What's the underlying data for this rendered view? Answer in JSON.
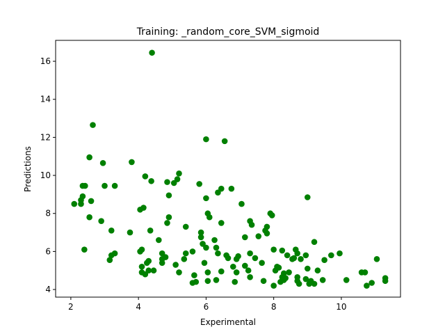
{
  "chart_data": {
    "type": "scatter",
    "title": "Training: _random_core_SVM_sigmoid",
    "xlabel": "Experimental",
    "ylabel": "Predictions",
    "xlim": [
      1.55,
      11.75
    ],
    "ylim": [
      3.6,
      17.1
    ],
    "xticks": [
      2,
      4,
      6,
      8,
      10
    ],
    "yticks": [
      4,
      6,
      8,
      10,
      12,
      14,
      16
    ],
    "grid": false,
    "marker_color": "#008000",
    "series": [
      {
        "points": [
          [
            2.1,
            8.5
          ],
          [
            2.3,
            8.5
          ],
          [
            2.3,
            8.7
          ],
          [
            2.35,
            8.9
          ],
          [
            2.35,
            9.45
          ],
          [
            2.42,
            9.45
          ],
          [
            2.4,
            6.1
          ],
          [
            2.55,
            7.8
          ],
          [
            2.55,
            10.95
          ],
          [
            2.6,
            8.65
          ],
          [
            2.65,
            12.65
          ],
          [
            2.9,
            7.6
          ],
          [
            2.95,
            10.65
          ],
          [
            3.0,
            9.45
          ],
          [
            3.15,
            5.55
          ],
          [
            3.2,
            7.1
          ],
          [
            3.2,
            5.8
          ],
          [
            3.3,
            5.9
          ],
          [
            3.3,
            9.45
          ],
          [
            3.75,
            7.0
          ],
          [
            3.8,
            10.7
          ],
          [
            4.05,
            8.2
          ],
          [
            4.05,
            6.0
          ],
          [
            4.1,
            5.2
          ],
          [
            4.1,
            6.1
          ],
          [
            4.1,
            4.9
          ],
          [
            4.15,
            8.3
          ],
          [
            4.2,
            4.8
          ],
          [
            4.2,
            9.95
          ],
          [
            4.25,
            5.4
          ],
          [
            4.3,
            5.5
          ],
          [
            4.3,
            5.0
          ],
          [
            4.35,
            7.1
          ],
          [
            4.38,
            9.7
          ],
          [
            4.4,
            16.45
          ],
          [
            4.45,
            5.0
          ],
          [
            4.6,
            6.6
          ],
          [
            4.7,
            5.9
          ],
          [
            4.7,
            5.6
          ],
          [
            4.7,
            5.4
          ],
          [
            4.8,
            5.7
          ],
          [
            4.85,
            7.5
          ],
          [
            4.85,
            9.65
          ],
          [
            4.9,
            7.8
          ],
          [
            4.9,
            8.95
          ],
          [
            5.05,
            9.6
          ],
          [
            5.1,
            5.3
          ],
          [
            5.15,
            9.8
          ],
          [
            5.2,
            10.1
          ],
          [
            5.2,
            4.9
          ],
          [
            5.35,
            5.6
          ],
          [
            5.4,
            5.9
          ],
          [
            5.4,
            7.3
          ],
          [
            5.6,
            6.0
          ],
          [
            5.6,
            4.35
          ],
          [
            5.65,
            4.75
          ],
          [
            5.7,
            4.4
          ],
          [
            5.8,
            9.55
          ],
          [
            5.85,
            7.0
          ],
          [
            5.85,
            6.75
          ],
          [
            5.9,
            6.4
          ],
          [
            5.95,
            5.4
          ],
          [
            6.0,
            6.2
          ],
          [
            6.0,
            8.8
          ],
          [
            6.0,
            11.9
          ],
          [
            6.05,
            4.9
          ],
          [
            6.05,
            4.45
          ],
          [
            6.05,
            8.0
          ],
          [
            6.1,
            7.8
          ],
          [
            6.25,
            6.6
          ],
          [
            6.3,
            4.5
          ],
          [
            6.3,
            6.2
          ],
          [
            6.35,
            5.9
          ],
          [
            6.35,
            9.1
          ],
          [
            6.45,
            9.3
          ],
          [
            6.45,
            7.5
          ],
          [
            6.45,
            4.95
          ],
          [
            6.55,
            11.8
          ],
          [
            6.6,
            5.8
          ],
          [
            6.65,
            5.65
          ],
          [
            6.75,
            9.3
          ],
          [
            6.8,
            5.2
          ],
          [
            6.85,
            4.4
          ],
          [
            6.9,
            4.9
          ],
          [
            6.9,
            5.6
          ],
          [
            6.95,
            5.75
          ],
          [
            7.05,
            8.5
          ],
          [
            7.15,
            6.75
          ],
          [
            7.15,
            5.25
          ],
          [
            7.25,
            5.0
          ],
          [
            7.3,
            5.9
          ],
          [
            7.3,
            4.65
          ],
          [
            7.3,
            7.6
          ],
          [
            7.35,
            7.4
          ],
          [
            7.45,
            5.65
          ],
          [
            7.55,
            6.8
          ],
          [
            7.65,
            5.4
          ],
          [
            7.7,
            4.45
          ],
          [
            7.75,
            7.1
          ],
          [
            7.8,
            6.95
          ],
          [
            7.8,
            7.3
          ],
          [
            7.9,
            8.0
          ],
          [
            7.95,
            7.9
          ],
          [
            8.0,
            6.1
          ],
          [
            8.0,
            4.2
          ],
          [
            8.05,
            5.0
          ],
          [
            8.1,
            5.2
          ],
          [
            8.15,
            5.15
          ],
          [
            8.2,
            4.4
          ],
          [
            8.25,
            4.65
          ],
          [
            8.25,
            6.05
          ],
          [
            8.3,
            4.5
          ],
          [
            8.3,
            4.85
          ],
          [
            8.35,
            4.6
          ],
          [
            8.4,
            5.8
          ],
          [
            8.45,
            4.9
          ],
          [
            8.55,
            5.6
          ],
          [
            8.6,
            5.65
          ],
          [
            8.65,
            6.1
          ],
          [
            8.7,
            4.65
          ],
          [
            8.7,
            4.45
          ],
          [
            8.7,
            5.9
          ],
          [
            8.75,
            4.3
          ],
          [
            8.8,
            5.6
          ],
          [
            8.95,
            5.8
          ],
          [
            8.95,
            4.55
          ],
          [
            9.0,
            8.85
          ],
          [
            9.0,
            5.1
          ],
          [
            9.05,
            4.3
          ],
          [
            9.1,
            4.45
          ],
          [
            9.2,
            4.3
          ],
          [
            9.2,
            6.5
          ],
          [
            9.3,
            5.0
          ],
          [
            9.45,
            4.5
          ],
          [
            9.5,
            5.55
          ],
          [
            9.7,
            5.8
          ],
          [
            9.95,
            5.9
          ],
          [
            10.15,
            4.5
          ],
          [
            10.6,
            4.9
          ],
          [
            10.7,
            4.9
          ],
          [
            10.75,
            4.2
          ],
          [
            10.9,
            4.35
          ],
          [
            11.05,
            5.6
          ],
          [
            11.3,
            4.45
          ],
          [
            11.3,
            4.6
          ]
        ]
      }
    ]
  }
}
